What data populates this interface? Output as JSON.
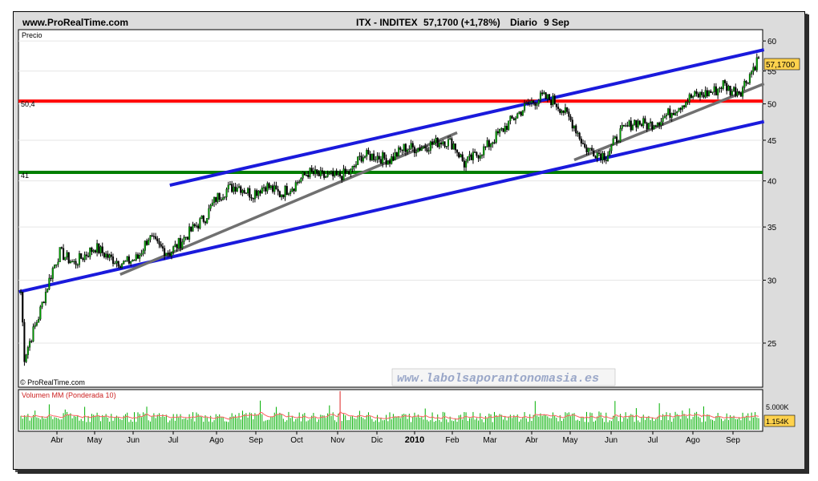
{
  "header": {
    "site": "www.ProRealTime.com",
    "instrument": "ITX - INDITEX",
    "quote": "57,1700 (+1,78%)",
    "period": "Diario",
    "date": "9 Sep"
  },
  "price_panel": {
    "label": "Precio",
    "credit": "© ProRealTime.com",
    "watermark": "www.labolsaporantonomasia.es",
    "last_price_badge": "57,1700",
    "level_red_label": "50,4",
    "level_green_label": "41"
  },
  "volume_panel": {
    "label": "Volumen MM (Ponderada 10)",
    "tick_label": "5.000K",
    "last_volume_badge": "1.154K"
  },
  "colors": {
    "candle": "#000000",
    "up_fill": "#00a000",
    "red_level": "#ff0000",
    "green_level": "#007f00",
    "channel": "#1a1adc",
    "trendline": "#707070",
    "volume_bar": "#00b000",
    "volume_avg": "#ff6060",
    "badge": "#ffd24d"
  },
  "chart_data": {
    "type": "line",
    "y_scale": "log",
    "ylim": [
      22,
      62
    ],
    "y_ticks": [
      25,
      30,
      35,
      40,
      45,
      50,
      55,
      60
    ],
    "x_ticks": [
      "Abr",
      "May",
      "Jun",
      "Jul",
      "Ago",
      "Sep",
      "Oct",
      "Nov",
      "Dic",
      "2010",
      "Feb",
      "Mar",
      "Abr",
      "May",
      "Jun",
      "Jul",
      "Ago",
      "Sep"
    ],
    "price_anchors": [
      [
        0,
        29
      ],
      [
        2,
        24
      ],
      [
        6,
        25.5
      ],
      [
        10,
        27
      ],
      [
        14,
        29
      ],
      [
        18,
        31
      ],
      [
        22,
        32.5
      ],
      [
        30,
        31.5
      ],
      [
        42,
        33
      ],
      [
        50,
        32
      ],
      [
        58,
        31.5
      ],
      [
        66,
        32
      ],
      [
        72,
        34
      ],
      [
        78,
        33
      ],
      [
        84,
        32.5
      ],
      [
        90,
        33.5
      ],
      [
        98,
        35
      ],
      [
        104,
        36
      ],
      [
        110,
        38
      ],
      [
        116,
        39
      ],
      [
        122,
        39.5
      ],
      [
        130,
        38.5
      ],
      [
        138,
        39.5
      ],
      [
        146,
        38.5
      ],
      [
        154,
        39.5
      ],
      [
        162,
        41
      ],
      [
        170,
        40.5
      ],
      [
        178,
        40.5
      ],
      [
        186,
        41
      ],
      [
        192,
        43
      ],
      [
        200,
        43
      ],
      [
        208,
        42.5
      ],
      [
        216,
        44
      ],
      [
        224,
        44
      ],
      [
        232,
        44.5
      ],
      [
        238,
        45
      ],
      [
        244,
        44.5
      ],
      [
        250,
        42
      ],
      [
        256,
        43
      ],
      [
        262,
        44
      ],
      [
        270,
        46
      ],
      [
        278,
        48
      ],
      [
        286,
        50
      ],
      [
        294,
        51
      ],
      [
        300,
        50.5
      ],
      [
        306,
        49
      ],
      [
        312,
        47
      ],
      [
        318,
        44
      ],
      [
        324,
        43.5
      ],
      [
        330,
        43
      ],
      [
        338,
        46
      ],
      [
        346,
        47.5
      ],
      [
        354,
        47
      ],
      [
        362,
        48
      ],
      [
        370,
        49.5
      ],
      [
        378,
        51
      ],
      [
        386,
        51.5
      ],
      [
        392,
        52
      ],
      [
        396,
        53
      ],
      [
        400,
        52
      ],
      [
        406,
        52
      ],
      [
        412,
        55
      ],
      [
        416,
        57.17
      ]
    ],
    "horizontal_levels": [
      50.4,
      41
    ],
    "channel_upper": [
      [
        0,
        39.5
      ],
      [
        416,
        58.5
      ]
    ],
    "channel_lower": [
      [
        0,
        29
      ],
      [
        416,
        47.5
      ]
    ],
    "trend_line_1": [
      [
        0,
        30.5
      ],
      [
        190,
        46
      ]
    ],
    "trend_line_2": [
      [
        0,
        42.5
      ],
      [
        190,
        53
      ]
    ],
    "last_price": 57.17,
    "volume_last_k": 1154
  }
}
